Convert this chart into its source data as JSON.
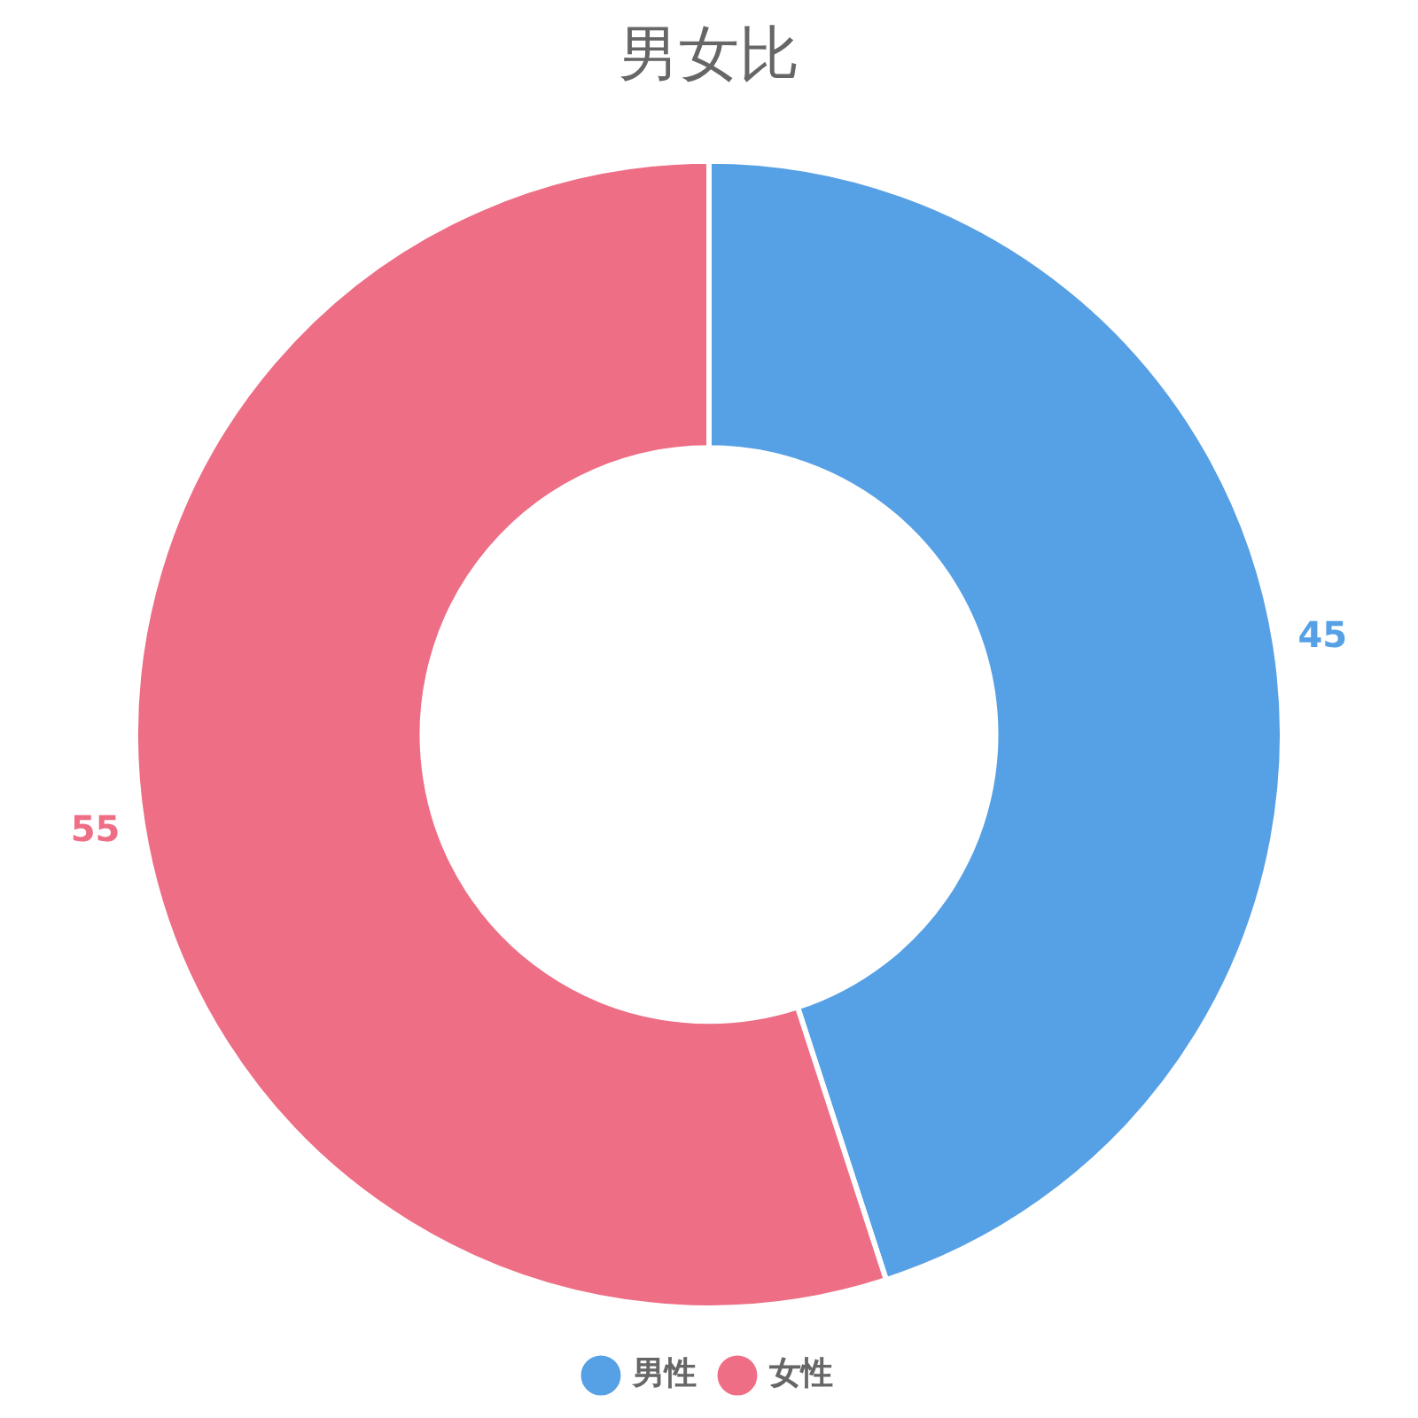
{
  "chart_data": {
    "type": "donut",
    "title": "男女比",
    "categories": [
      "男性",
      "女性"
    ],
    "values": [
      45,
      55
    ],
    "colors": [
      "#56a0e5",
      "#ed6e85"
    ],
    "legend": "bottom",
    "data_labels": true
  }
}
